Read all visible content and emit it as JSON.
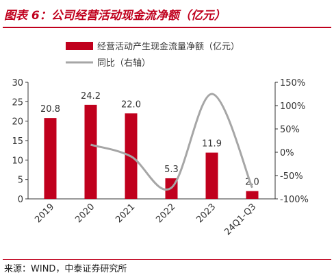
{
  "title": "图表 6：公司经营活动现金流净额（亿元）",
  "source": "来源：WIND，中泰证券研究所",
  "colors": {
    "bar": "#c0001d",
    "line": "#a6a6a6",
    "axis": "#333333",
    "title": "#c0001d"
  },
  "chart_data": {
    "type": "bar",
    "categories": [
      "2019",
      "2020",
      "2021",
      "2022",
      "2023",
      "24Q1-Q3"
    ],
    "series": [
      {
        "name": "经营活动产生现金流量净额（亿元）",
        "type": "bar",
        "axis": "left",
        "values": [
          20.8,
          24.2,
          22.0,
          5.3,
          11.9,
          2.0
        ],
        "labels": [
          "20.8",
          "24.2",
          "22.0",
          "5.3",
          "11.9",
          "2.0"
        ]
      },
      {
        "name": "同比（右轴）",
        "type": "line",
        "axis": "right",
        "values": [
          null,
          16,
          -9,
          -76,
          125,
          -76
        ]
      }
    ],
    "left_axis": {
      "ylim": [
        0,
        30
      ],
      "ticks": [
        "0",
        "5",
        "10",
        "15",
        "20",
        "25",
        "30"
      ]
    },
    "right_axis": {
      "ylim": [
        -100,
        150
      ],
      "ticks": [
        "-100%",
        "-50%",
        "0%",
        "50%",
        "100%",
        "150%"
      ]
    },
    "legend": {
      "placement": "top-left"
    },
    "grid": false
  }
}
